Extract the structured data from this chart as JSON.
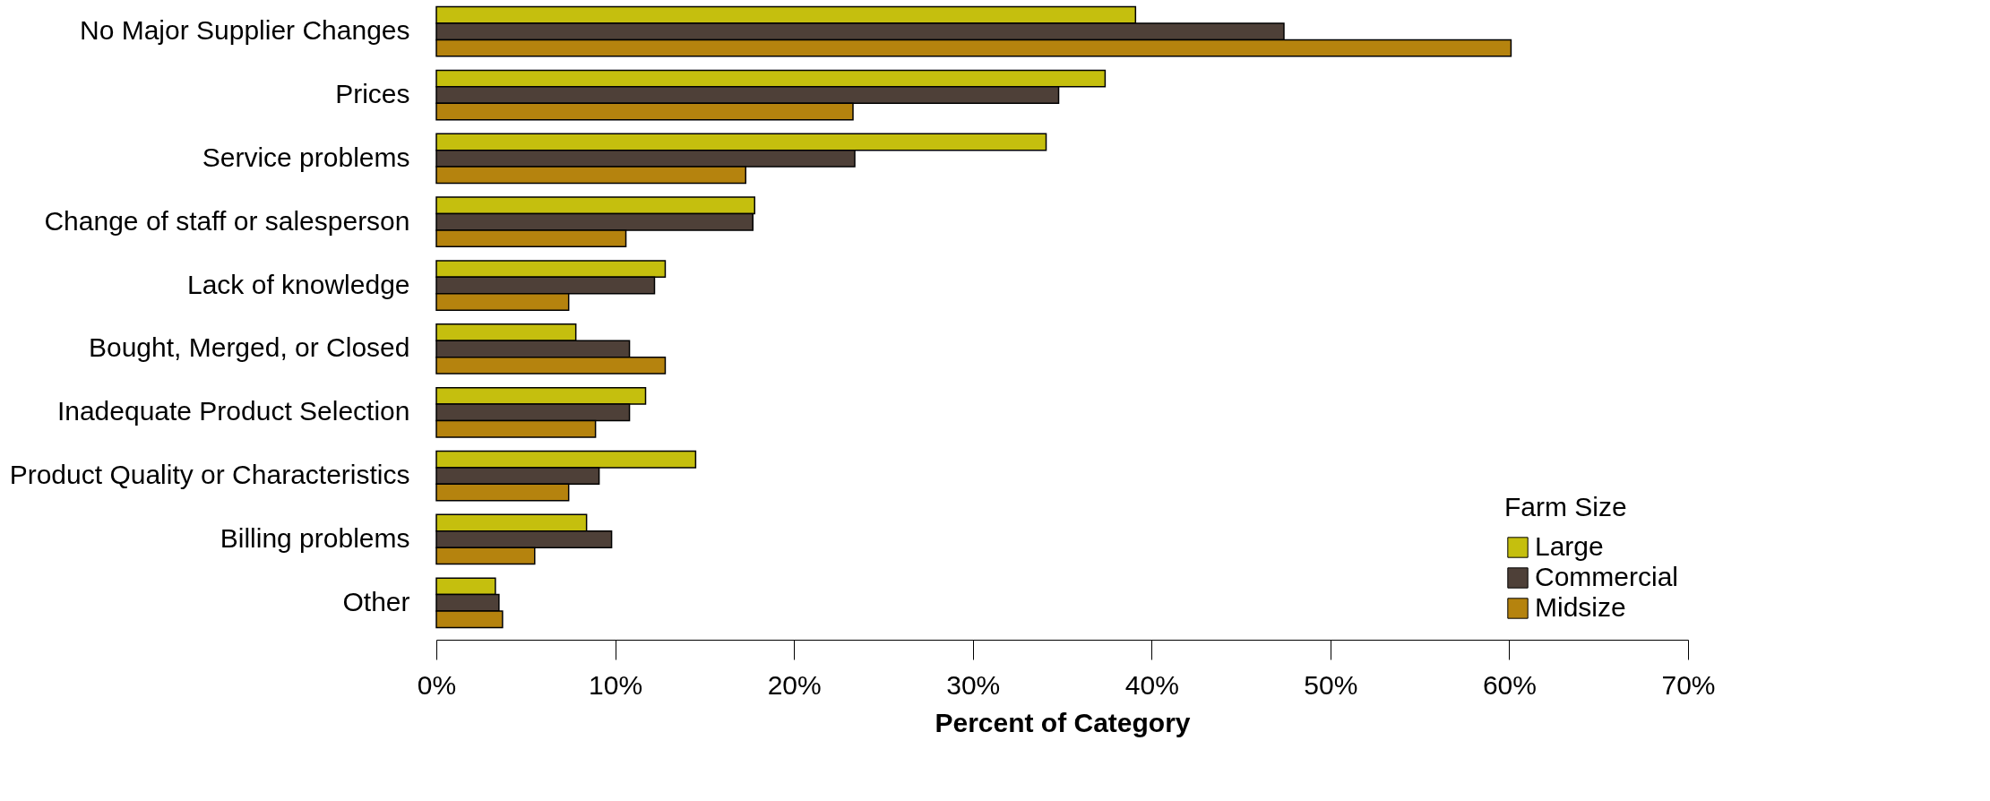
{
  "chart_data": {
    "type": "bar",
    "orientation": "horizontal",
    "xlabel": "Percent of Category",
    "legend_title": "Farm Size",
    "legend": "bottom right",
    "grid": false,
    "categories": [
      "No Major Supplier Changes",
      "Prices",
      "Service problems",
      "Change of staff or salesperson",
      "Lack of knowledge",
      "Bought, Merged, or Closed",
      "Inadequate Product Selection",
      "Product Quality or Characteristics",
      "Billing problems",
      "Other"
    ],
    "series": [
      {
        "name": "Large",
        "color": "#c5bf0e",
        "values": [
          39.1,
          37.4,
          34.1,
          17.8,
          12.8,
          7.8,
          11.7,
          14.5,
          8.4,
          3.3
        ]
      },
      {
        "name": "Commercial",
        "color": "#4e4038",
        "values": [
          47.4,
          34.8,
          23.4,
          17.7,
          12.2,
          10.8,
          10.8,
          9.1,
          9.8,
          3.5
        ]
      },
      {
        "name": "Midsize",
        "color": "#b5830e",
        "values": [
          60.1,
          23.3,
          17.3,
          10.6,
          7.4,
          12.8,
          8.9,
          7.4,
          5.5,
          3.7
        ]
      }
    ],
    "xlim": [
      0,
      70
    ],
    "xticks": [
      {
        "value": 0,
        "label": "0%"
      },
      {
        "value": 10,
        "label": "10%"
      },
      {
        "value": 20,
        "label": "20%"
      },
      {
        "value": 30,
        "label": "30%"
      },
      {
        "value": 40,
        "label": "40%"
      },
      {
        "value": 50,
        "label": "50%"
      },
      {
        "value": 60,
        "label": "60%"
      },
      {
        "value": 70,
        "label": "70%"
      }
    ]
  }
}
